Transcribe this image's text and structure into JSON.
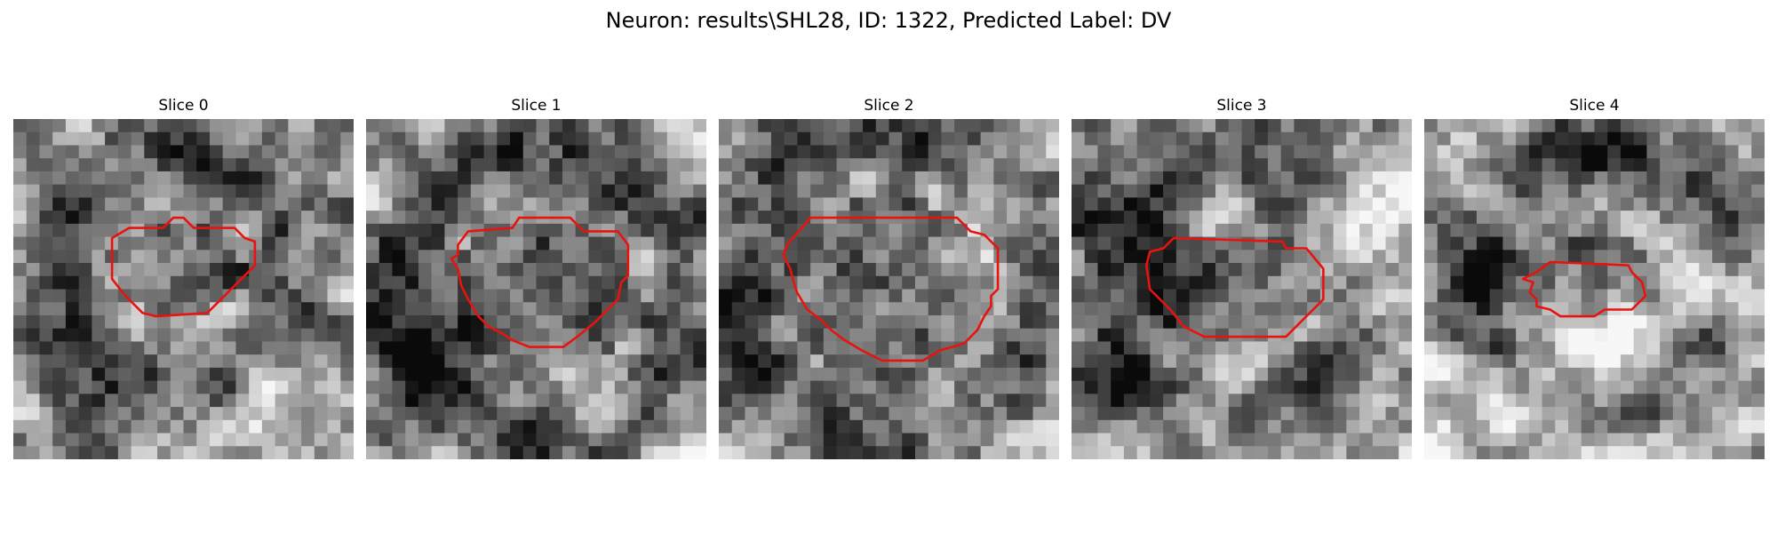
{
  "figure": {
    "title": "Neuron: results\\SHL28, ID: 1322, Predicted Label: DV"
  },
  "panels": [
    {
      "title": "Slice 0"
    },
    {
      "title": "Slice 1"
    },
    {
      "title": "Slice 2"
    },
    {
      "title": "Slice 3"
    },
    {
      "title": "Slice 4"
    }
  ],
  "colors": {
    "contour": "#e8130f",
    "background": "#ffffff"
  },
  "image": {
    "colormap": "grayscale",
    "grid_size": 26
  }
}
